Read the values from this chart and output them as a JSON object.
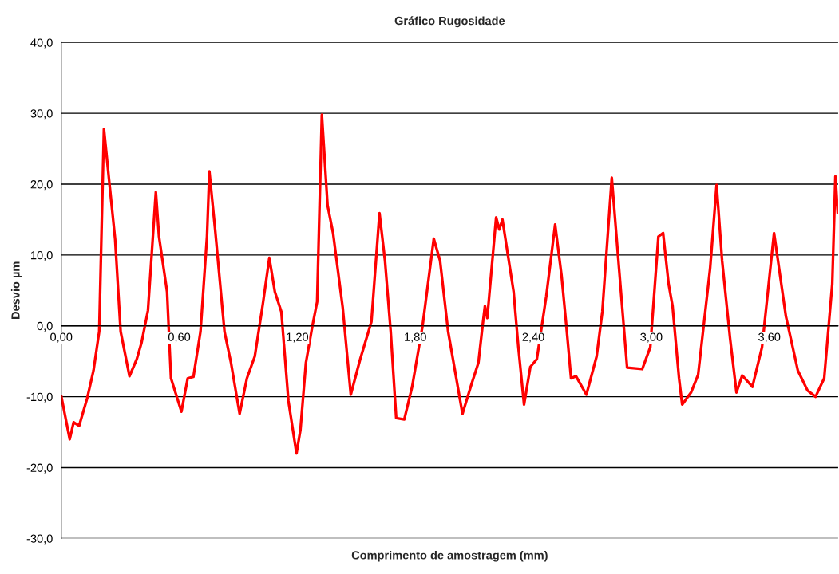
{
  "chart_data": {
    "type": "line",
    "title": "Gráfico Rugosidade",
    "xlabel": "Comprimento de amostragem (mm)",
    "ylabel": "Desvio µm",
    "xlim": [
      0,
      3.95
    ],
    "ylim": [
      -30,
      40
    ],
    "xticks": [
      {
        "value": 0,
        "label": "0,00"
      },
      {
        "value": 0.6,
        "label": "0,60"
      },
      {
        "value": 1.2,
        "label": "1,20"
      },
      {
        "value": 1.8,
        "label": "1,80"
      },
      {
        "value": 2.4,
        "label": "2,40"
      },
      {
        "value": 3.0,
        "label": "3,00"
      },
      {
        "value": 3.6,
        "label": "3,60"
      }
    ],
    "yticks": [
      {
        "value": -30,
        "label": "-30,0"
      },
      {
        "value": -20,
        "label": "-20,0"
      },
      {
        "value": -10,
        "label": "-10,0"
      },
      {
        "value": 0,
        "label": "0,0"
      },
      {
        "value": 10,
        "label": "10,0"
      },
      {
        "value": 20,
        "label": "20,0"
      },
      {
        "value": 30,
        "label": "30,0"
      },
      {
        "value": 40,
        "label": "40,0"
      }
    ],
    "grid": "y",
    "marker": "none",
    "line_style": "solid",
    "series": [
      {
        "color": "#ff0000",
        "x": [
          0,
          0.043,
          0.063,
          0.091,
          0.132,
          0.164,
          0.193,
          0.217,
          0.242,
          0.274,
          0.302,
          0.347,
          0.384,
          0.408,
          0.441,
          0.481,
          0.497,
          0.538,
          0.558,
          0.611,
          0.643,
          0.672,
          0.708,
          0.741,
          0.753,
          0.782,
          0.83,
          0.863,
          0.907,
          0.944,
          0.984,
          1.025,
          1.058,
          1.086,
          1.119,
          1.155,
          1.196,
          1.216,
          1.244,
          1.277,
          1.301,
          1.325,
          1.354,
          1.382,
          1.431,
          1.472,
          1.52,
          1.577,
          1.618,
          1.646,
          1.675,
          1.703,
          1.744,
          1.784,
          1.837,
          1.894,
          1.926,
          1.967,
          2.04,
          2.085,
          2.121,
          2.142,
          2.154,
          2.166,
          2.211,
          2.227,
          2.243,
          2.3,
          2.324,
          2.353,
          2.385,
          2.418,
          2.466,
          2.511,
          2.544,
          2.568,
          2.592,
          2.617,
          2.67,
          2.722,
          2.751,
          2.799,
          2.836,
          2.877,
          2.954,
          2.995,
          3.036,
          3.06,
          3.088,
          3.108,
          3.141,
          3.157,
          3.202,
          3.238,
          3.299,
          3.332,
          3.36,
          3.401,
          3.433,
          3.462,
          3.514,
          3.563,
          3.624,
          3.684,
          3.745,
          3.794,
          3.835,
          3.879,
          3.92,
          3.936,
          3.948
        ],
        "values": [
          -9.9,
          -16.0,
          -13.6,
          -14.1,
          -10.2,
          -6.3,
          -0.8,
          27.8,
          20.9,
          12.2,
          -0.8,
          -7.1,
          -4.7,
          -2.4,
          2.2,
          18.9,
          12.6,
          4.8,
          -7.4,
          -12.1,
          -7.4,
          -7.2,
          -0.8,
          12.6,
          21.8,
          13.7,
          -0.8,
          -5.2,
          -12.4,
          -7.4,
          -4.3,
          3.1,
          9.6,
          4.8,
          2.0,
          -10.6,
          -18.0,
          -14.7,
          -5.2,
          0.0,
          3.4,
          29.8,
          17.0,
          13.1,
          2.6,
          -9.7,
          -4.7,
          0.6,
          15.9,
          9.2,
          -0.8,
          -13.0,
          -13.2,
          -8.6,
          0.0,
          12.3,
          9.2,
          -0.8,
          -12.4,
          -8.3,
          -5.2,
          0.0,
          2.8,
          1.1,
          15.3,
          13.6,
          15.0,
          4.8,
          -3.0,
          -11.1,
          -5.8,
          -4.7,
          4.2,
          14.3,
          7.0,
          0.0,
          -7.4,
          -7.1,
          -9.7,
          -4.3,
          2.0,
          20.9,
          8.1,
          -5.9,
          -6.1,
          -3.0,
          12.6,
          13.1,
          5.9,
          2.8,
          -7.4,
          -11.1,
          -9.4,
          -6.9,
          8.1,
          19.9,
          9.2,
          -1.9,
          -9.4,
          -7.0,
          -8.6,
          -3.0,
          13.1,
          1.4,
          -6.3,
          -9.1,
          -10.0,
          -7.4,
          5.9,
          21.1,
          15.9
        ]
      }
    ]
  }
}
